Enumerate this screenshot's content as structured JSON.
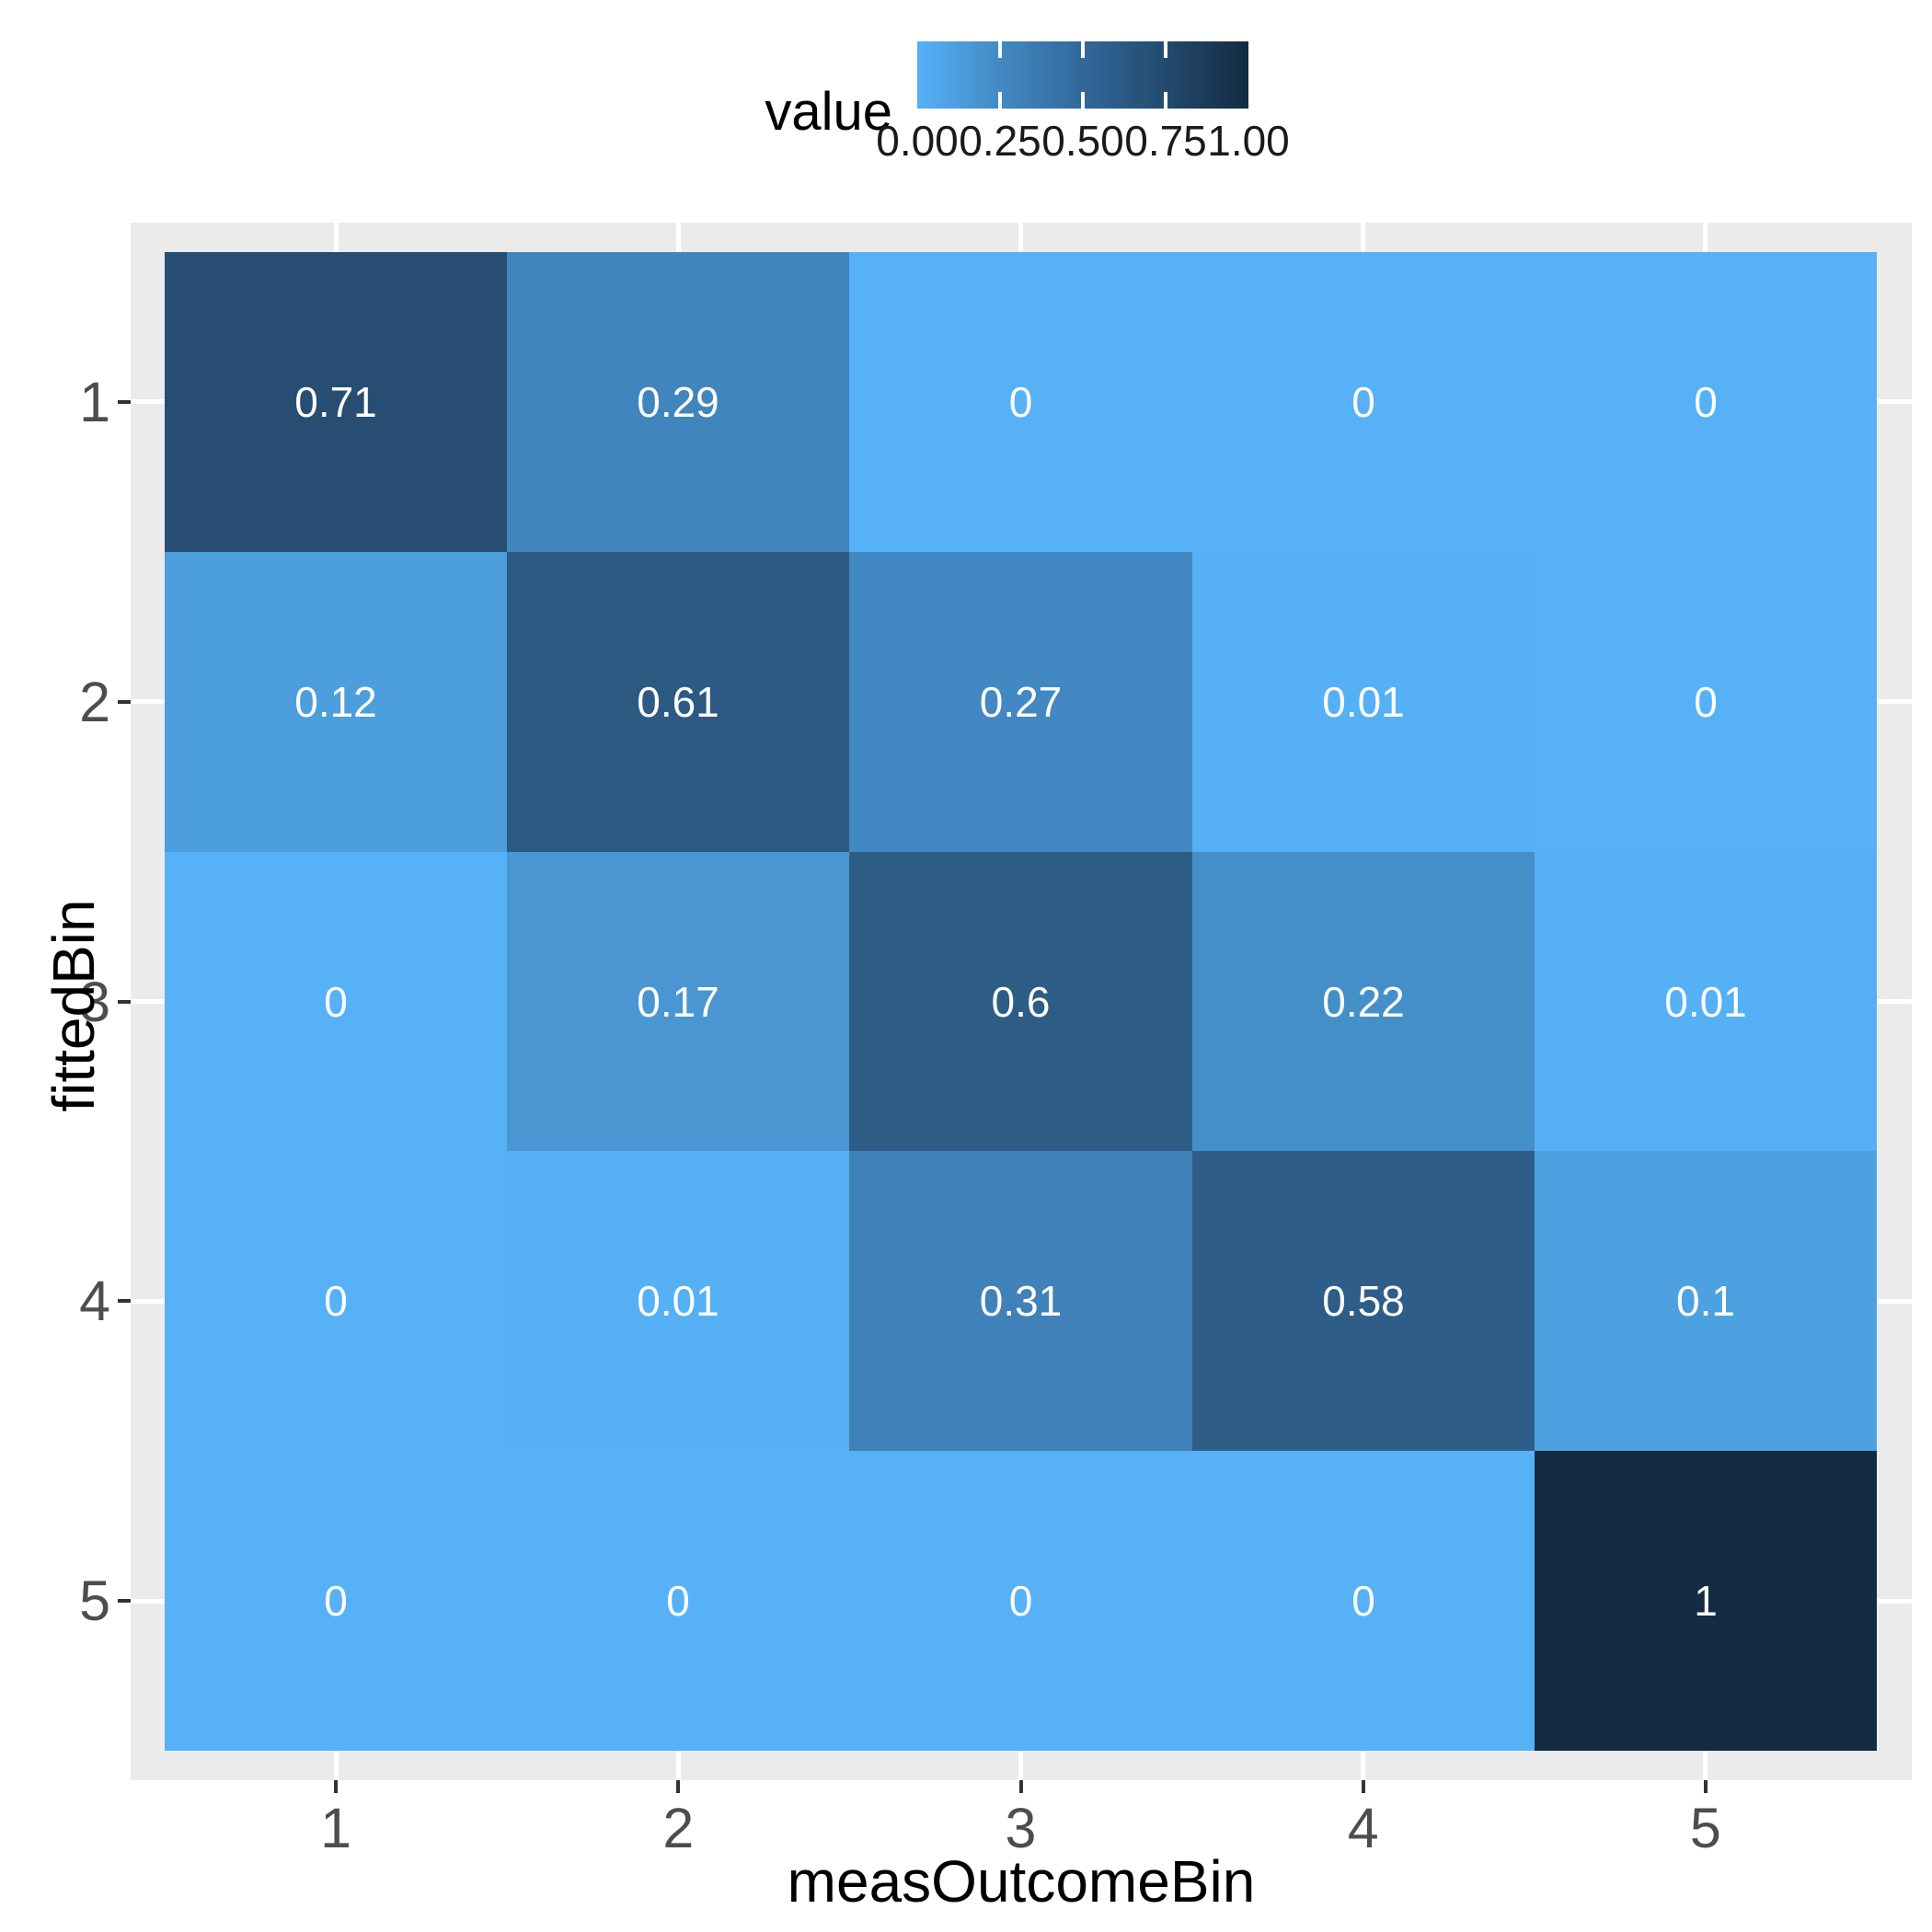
{
  "chart_data": {
    "type": "heatmap",
    "xlabel": "measOutcomeBin",
    "ylabel": "fittedBin",
    "x_ticks": [
      "1",
      "2",
      "3",
      "4",
      "5"
    ],
    "y_ticks": [
      "1",
      "2",
      "3",
      "4",
      "5"
    ],
    "rows": [
      {
        "fittedBin": 1,
        "values": [
          0.71,
          0.29,
          0,
          0,
          0
        ],
        "labels": [
          "0.71",
          "0.29",
          "0",
          "0",
          "0"
        ],
        "colors": [
          "#274E72",
          "#4185BE",
          "#56B1F7",
          "#56B1F7",
          "#56B1F7"
        ]
      },
      {
        "fittedBin": 2,
        "values": [
          0.12,
          0.61,
          0.27,
          0.01,
          0
        ],
        "labels": [
          "0.12",
          "0.61",
          "0.27",
          "0.01",
          "0"
        ],
        "colors": [
          "#4C9EDC",
          "#2C5A83",
          "#4288C2",
          "#55B0F5",
          "#56B1F7"
        ]
      },
      {
        "fittedBin": 3,
        "values": [
          0,
          0.17,
          0.6,
          0.22,
          0.01
        ],
        "labels": [
          "0",
          "0.17",
          "0.6",
          "0.22",
          "0.01"
        ],
        "colors": [
          "#56B1F7",
          "#4996D3",
          "#2D5C85",
          "#458FC9",
          "#55B0F5"
        ]
      },
      {
        "fittedBin": 4,
        "values": [
          0,
          0.01,
          0.31,
          0.58,
          0.1
        ],
        "labels": [
          "0",
          "0.01",
          "0.31",
          "0.58",
          "0.1"
        ],
        "colors": [
          "#56B1F7",
          "#55B0F5",
          "#4081BA",
          "#2E5E88",
          "#4EA1E0"
        ]
      },
      {
        "fittedBin": 5,
        "values": [
          0,
          0,
          0,
          0,
          1
        ],
        "labels": [
          "0",
          "0",
          "0",
          "0",
          "1"
        ],
        "colors": [
          "#56B1F7",
          "#56B1F7",
          "#56B1F7",
          "#56B1F7",
          "#132B43"
        ]
      }
    ],
    "colorscale": {
      "low": 0.0,
      "high": 1.0,
      "low_color": "#56B1F7",
      "high_color": "#132B43",
      "mid_stops": [
        "#4389C4",
        "#32689A",
        "#234A6E"
      ]
    },
    "legend": {
      "title": "value",
      "tick_labels": [
        "0.00",
        "0.25",
        "0.50",
        "0.75",
        "1.00"
      ],
      "position": "top"
    },
    "grid": true,
    "value_text_color": "#FFFFFF"
  },
  "theme": {
    "panel_bg": "#EBEBEB",
    "grid_color": "#FFFFFF",
    "tick_color": "#333333",
    "tick_label_color": "#4D4D4D",
    "title_color": "#000000",
    "background": "#FFFFFF"
  }
}
